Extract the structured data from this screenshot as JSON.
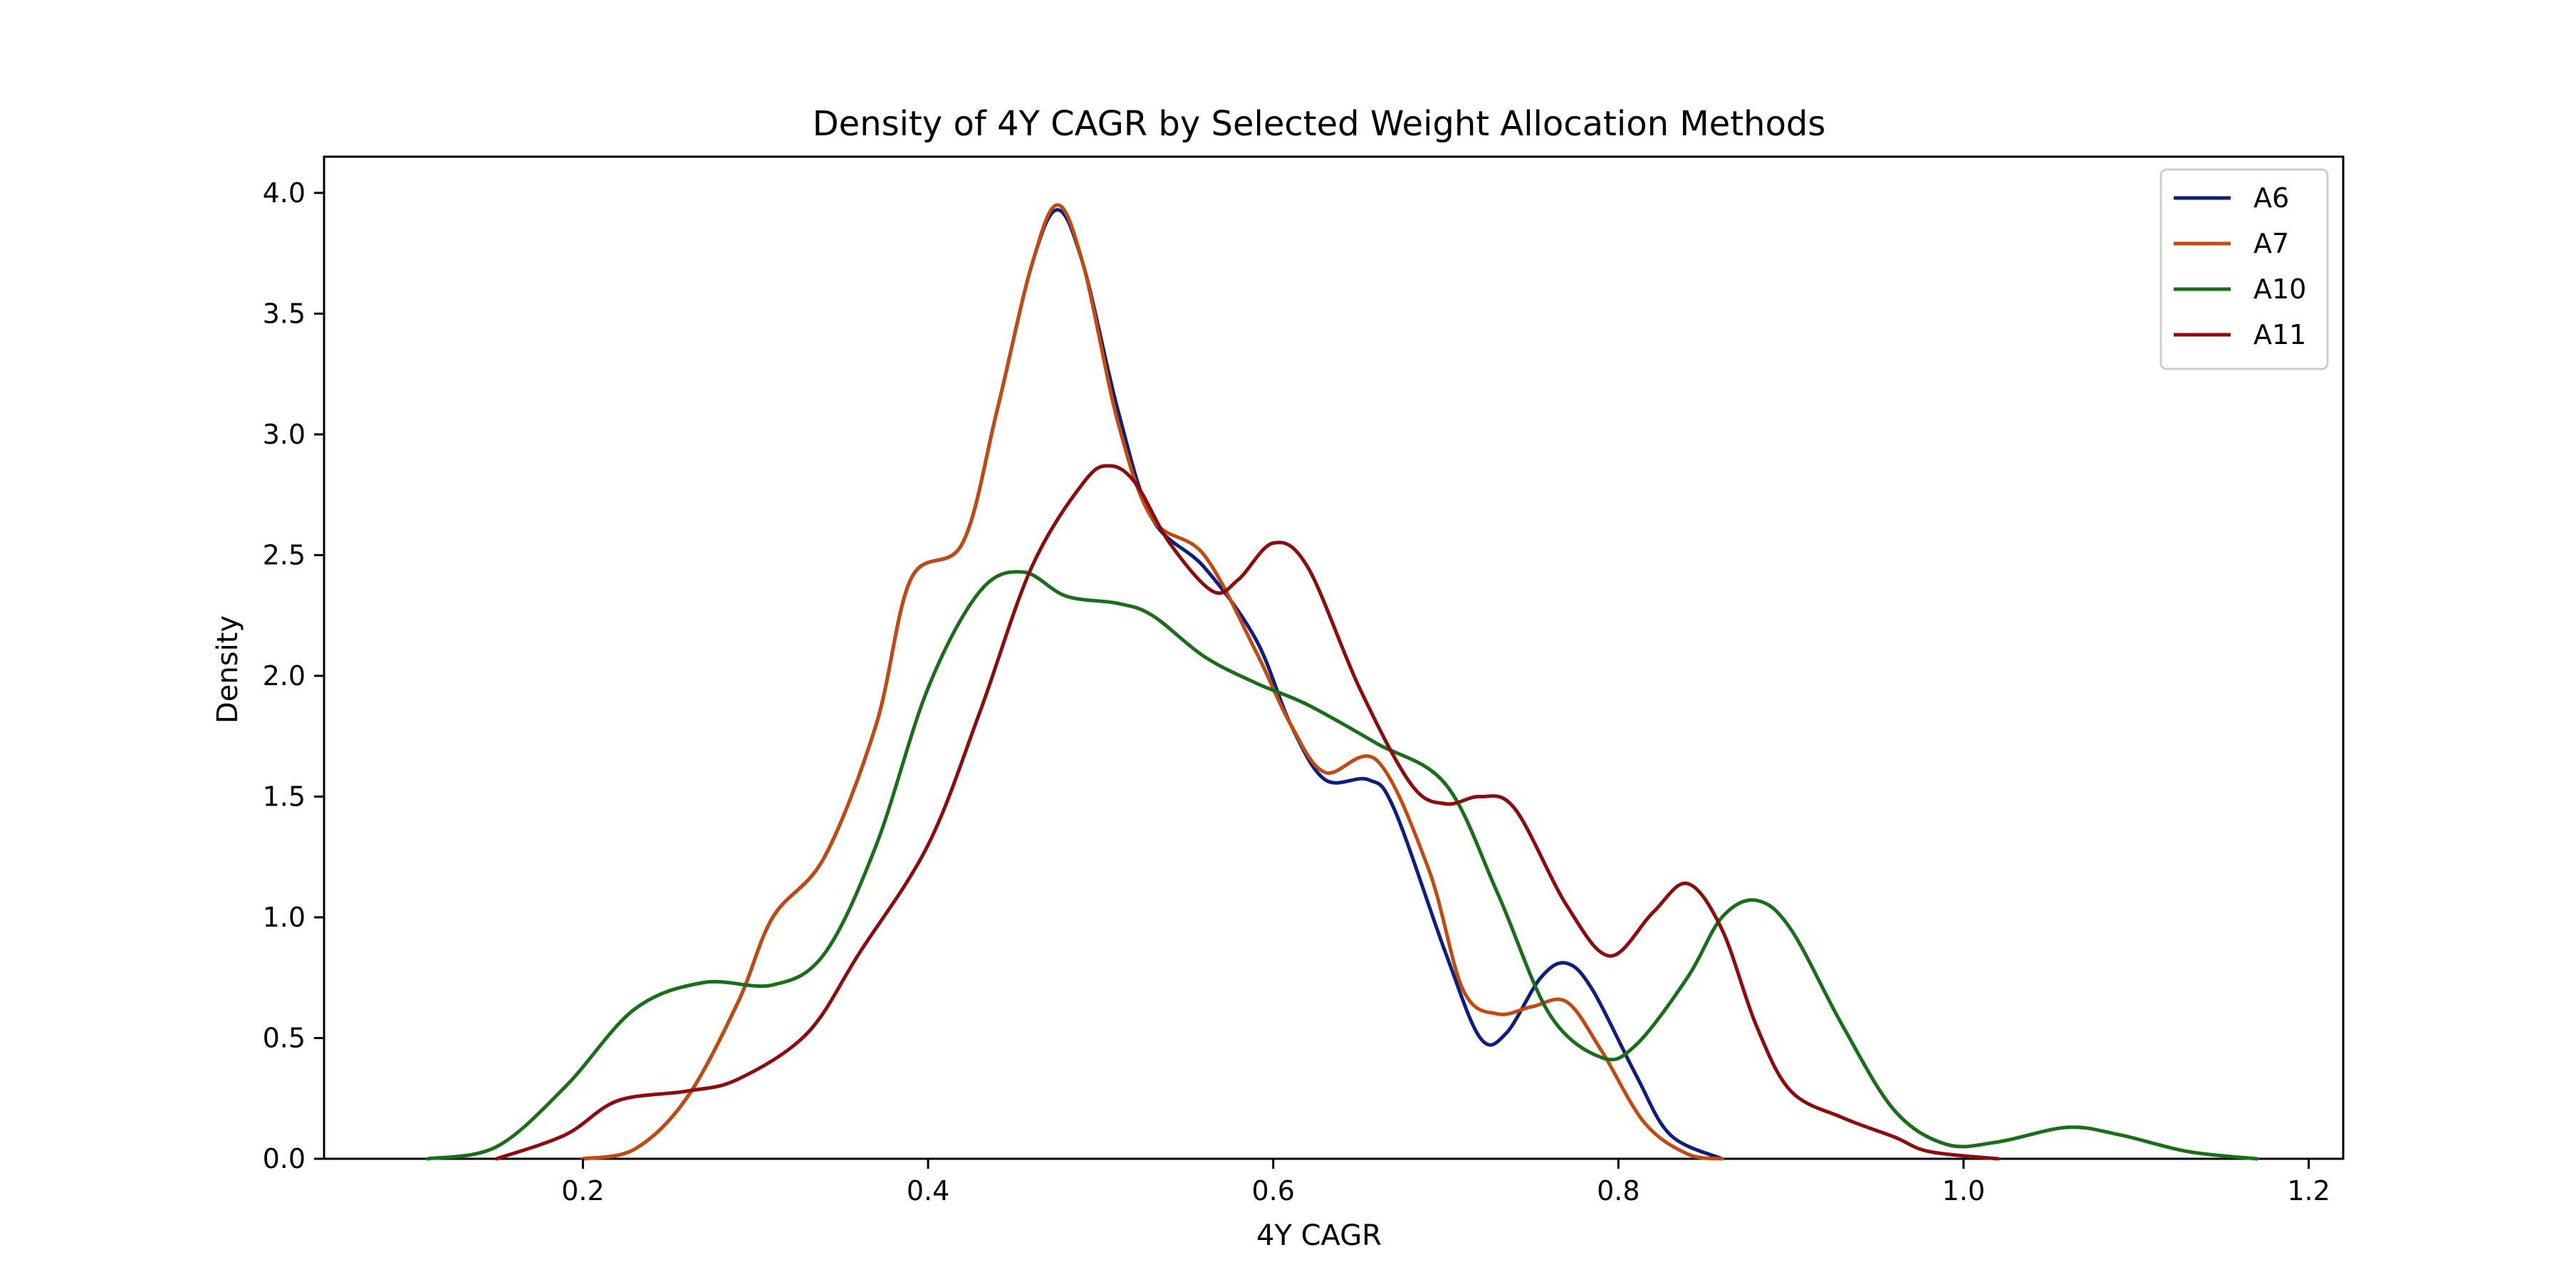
{
  "chart_data": {
    "type": "line",
    "title": "Density of 4Y CAGR by Selected Weight Allocation Methods",
    "xlabel": "4Y CAGR",
    "ylabel": "Density",
    "xlim": [
      0.05,
      1.22
    ],
    "ylim": [
      0.0,
      4.15
    ],
    "xticks": [
      0.2,
      0.4,
      0.6,
      0.8,
      1.0,
      1.2
    ],
    "xtick_labels": [
      "0.2",
      "0.4",
      "0.6",
      "0.8",
      "1.0",
      "1.2"
    ],
    "yticks": [
      0.0,
      0.5,
      1.0,
      1.5,
      2.0,
      2.5,
      3.0,
      3.5,
      4.0
    ],
    "ytick_labels": [
      "0.0",
      "0.5",
      "1.0",
      "1.5",
      "2.0",
      "2.5",
      "3.0",
      "3.5",
      "4.0"
    ],
    "grid": false,
    "legend_position": "top-right",
    "series": [
      {
        "name": "A6",
        "color": "#0d1f7a",
        "points": [
          [
            0.2,
            0.0
          ],
          [
            0.23,
            0.04
          ],
          [
            0.26,
            0.25
          ],
          [
            0.29,
            0.65
          ],
          [
            0.31,
            1.0
          ],
          [
            0.34,
            1.25
          ],
          [
            0.37,
            1.8
          ],
          [
            0.39,
            2.4
          ],
          [
            0.42,
            2.55
          ],
          [
            0.44,
            3.1
          ],
          [
            0.46,
            3.7
          ],
          [
            0.475,
            3.93
          ],
          [
            0.49,
            3.7
          ],
          [
            0.51,
            3.1
          ],
          [
            0.53,
            2.65
          ],
          [
            0.56,
            2.45
          ],
          [
            0.59,
            2.15
          ],
          [
            0.61,
            1.8
          ],
          [
            0.63,
            1.57
          ],
          [
            0.655,
            1.57
          ],
          [
            0.67,
            1.45
          ],
          [
            0.7,
            0.85
          ],
          [
            0.72,
            0.5
          ],
          [
            0.735,
            0.52
          ],
          [
            0.755,
            0.75
          ],
          [
            0.77,
            0.81
          ],
          [
            0.785,
            0.7
          ],
          [
            0.81,
            0.35
          ],
          [
            0.83,
            0.1
          ],
          [
            0.86,
            0.0
          ]
        ]
      },
      {
        "name": "A7",
        "color": "#c04a12",
        "points": [
          [
            0.2,
            0.0
          ],
          [
            0.23,
            0.04
          ],
          [
            0.26,
            0.25
          ],
          [
            0.29,
            0.65
          ],
          [
            0.31,
            1.0
          ],
          [
            0.34,
            1.25
          ],
          [
            0.37,
            1.8
          ],
          [
            0.39,
            2.4
          ],
          [
            0.42,
            2.55
          ],
          [
            0.44,
            3.1
          ],
          [
            0.46,
            3.7
          ],
          [
            0.475,
            3.95
          ],
          [
            0.49,
            3.7
          ],
          [
            0.51,
            3.05
          ],
          [
            0.53,
            2.65
          ],
          [
            0.56,
            2.5
          ],
          [
            0.59,
            2.1
          ],
          [
            0.61,
            1.8
          ],
          [
            0.63,
            1.6
          ],
          [
            0.66,
            1.65
          ],
          [
            0.69,
            1.2
          ],
          [
            0.71,
            0.7
          ],
          [
            0.73,
            0.6
          ],
          [
            0.75,
            0.63
          ],
          [
            0.77,
            0.65
          ],
          [
            0.79,
            0.45
          ],
          [
            0.815,
            0.15
          ],
          [
            0.84,
            0.02
          ],
          [
            0.86,
            0.0
          ]
        ]
      },
      {
        "name": "A10",
        "color": "#1a6e1a",
        "points": [
          [
            0.11,
            0.0
          ],
          [
            0.15,
            0.05
          ],
          [
            0.19,
            0.3
          ],
          [
            0.23,
            0.62
          ],
          [
            0.27,
            0.73
          ],
          [
            0.31,
            0.72
          ],
          [
            0.34,
            0.85
          ],
          [
            0.37,
            1.3
          ],
          [
            0.4,
            1.95
          ],
          [
            0.43,
            2.35
          ],
          [
            0.455,
            2.43
          ],
          [
            0.48,
            2.33
          ],
          [
            0.51,
            2.3
          ],
          [
            0.53,
            2.25
          ],
          [
            0.56,
            2.08
          ],
          [
            0.59,
            1.97
          ],
          [
            0.62,
            1.88
          ],
          [
            0.66,
            1.72
          ],
          [
            0.7,
            1.55
          ],
          [
            0.73,
            1.1
          ],
          [
            0.76,
            0.6
          ],
          [
            0.79,
            0.42
          ],
          [
            0.81,
            0.47
          ],
          [
            0.84,
            0.75
          ],
          [
            0.86,
            1.0
          ],
          [
            0.88,
            1.07
          ],
          [
            0.9,
            0.95
          ],
          [
            0.93,
            0.55
          ],
          [
            0.96,
            0.2
          ],
          [
            0.99,
            0.06
          ],
          [
            1.02,
            0.07
          ],
          [
            1.06,
            0.13
          ],
          [
            1.09,
            0.1
          ],
          [
            1.13,
            0.03
          ],
          [
            1.17,
            0.0
          ]
        ]
      },
      {
        "name": "A11",
        "color": "#8b0c0c",
        "points": [
          [
            0.15,
            0.0
          ],
          [
            0.19,
            0.1
          ],
          [
            0.22,
            0.24
          ],
          [
            0.26,
            0.28
          ],
          [
            0.29,
            0.33
          ],
          [
            0.33,
            0.52
          ],
          [
            0.36,
            0.85
          ],
          [
            0.4,
            1.3
          ],
          [
            0.43,
            1.85
          ],
          [
            0.46,
            2.45
          ],
          [
            0.49,
            2.8
          ],
          [
            0.505,
            2.87
          ],
          [
            0.52,
            2.8
          ],
          [
            0.54,
            2.55
          ],
          [
            0.565,
            2.35
          ],
          [
            0.58,
            2.4
          ],
          [
            0.6,
            2.55
          ],
          [
            0.62,
            2.45
          ],
          [
            0.65,
            1.95
          ],
          [
            0.68,
            1.55
          ],
          [
            0.7,
            1.47
          ],
          [
            0.72,
            1.5
          ],
          [
            0.74,
            1.45
          ],
          [
            0.77,
            1.05
          ],
          [
            0.795,
            0.84
          ],
          [
            0.82,
            1.02
          ],
          [
            0.84,
            1.14
          ],
          [
            0.86,
            0.95
          ],
          [
            0.88,
            0.55
          ],
          [
            0.9,
            0.28
          ],
          [
            0.93,
            0.17
          ],
          [
            0.96,
            0.09
          ],
          [
            0.98,
            0.03
          ],
          [
            1.02,
            0.0
          ]
        ]
      }
    ]
  }
}
